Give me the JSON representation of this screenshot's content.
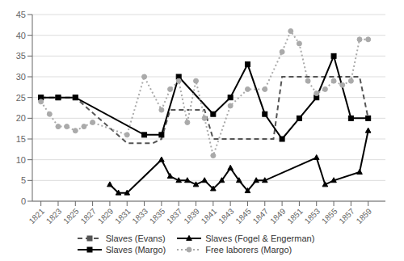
{
  "chart_data": {
    "type": "line",
    "xlim": [
      1820,
      1861
    ],
    "xticks": [
      1821,
      1823,
      1825,
      1827,
      1829,
      1831,
      1833,
      1835,
      1837,
      1839,
      1841,
      1843,
      1845,
      1847,
      1849,
      1851,
      1853,
      1855,
      1857,
      1859
    ],
    "ylim": [
      0,
      45
    ],
    "yticks": [
      0,
      5,
      10,
      15,
      20,
      25,
      30,
      35,
      40,
      45
    ],
    "grid": true,
    "legend": "bottom",
    "series": [
      {
        "name": "Slaves (Evans)",
        "color": "#555555",
        "line_style": "dashed",
        "marker": "square",
        "x": [
          1821,
          1822,
          1823,
          1824,
          1825,
          1831,
          1832,
          1833,
          1834,
          1835,
          1836,
          1837,
          1838,
          1839,
          1840,
          1841,
          1842,
          1843,
          1844,
          1845,
          1846,
          1847,
          1848,
          1849,
          1850,
          1851,
          1852,
          1853,
          1854,
          1855,
          1856,
          1857,
          1858,
          1859
        ],
        "values": [
          25,
          25,
          25,
          25,
          25,
          14,
          14,
          14,
          14,
          15,
          22,
          22,
          22,
          22,
          22,
          15,
          15,
          15,
          15,
          15,
          15,
          15,
          15,
          30,
          30,
          30,
          30,
          30,
          30,
          30,
          30,
          30,
          30,
          20
        ],
        "marker_x": [
          1821,
          1823,
          1825
        ]
      },
      {
        "name": "Slaves (Fogel & Engerman)",
        "color": "#000000",
        "line_style": "solid",
        "marker": "triangle",
        "x": [
          1829,
          1830,
          1831,
          1835,
          1836,
          1837,
          1838,
          1839,
          1840,
          1841,
          1842,
          1843,
          1844,
          1845,
          1846,
          1847,
          1853,
          1854,
          1855,
          1858,
          1859
        ],
        "values": [
          4,
          2,
          2,
          10,
          6,
          5,
          5,
          4,
          5,
          3,
          5,
          8,
          5,
          2.5,
          5,
          5,
          10.5,
          4,
          5,
          7,
          17
        ]
      },
      {
        "name": "Slaves (Margo)",
        "color": "#000000",
        "line_style": "solid",
        "marker": "square",
        "x": [
          1821,
          1823,
          1825,
          1833,
          1835,
          1837,
          1841,
          1843,
          1845,
          1847,
          1849,
          1851,
          1853,
          1855,
          1857,
          1859
        ],
        "values": [
          25,
          25,
          25,
          16,
          16,
          30,
          21,
          25,
          33,
          21,
          15,
          20,
          25,
          35,
          20,
          20
        ]
      },
      {
        "name": "Free laborers (Margo)",
        "color": "#aaaaaa",
        "line_style": "dotted",
        "marker": "circle",
        "x": [
          1821,
          1822,
          1823,
          1824,
          1825,
          1826,
          1827,
          1831,
          1833,
          1835,
          1836,
          1837,
          1838,
          1839,
          1840,
          1841,
          1843,
          1845,
          1847,
          1849,
          1850,
          1851,
          1852,
          1853,
          1854,
          1855,
          1856,
          1857,
          1858,
          1859
        ],
        "values": [
          24,
          21,
          18,
          18,
          17,
          18,
          19,
          16,
          30,
          22,
          27,
          29,
          19,
          29,
          20,
          11,
          23,
          27,
          27,
          36,
          41,
          38,
          29,
          26,
          27,
          29,
          28,
          29,
          39,
          39
        ]
      }
    ]
  }
}
